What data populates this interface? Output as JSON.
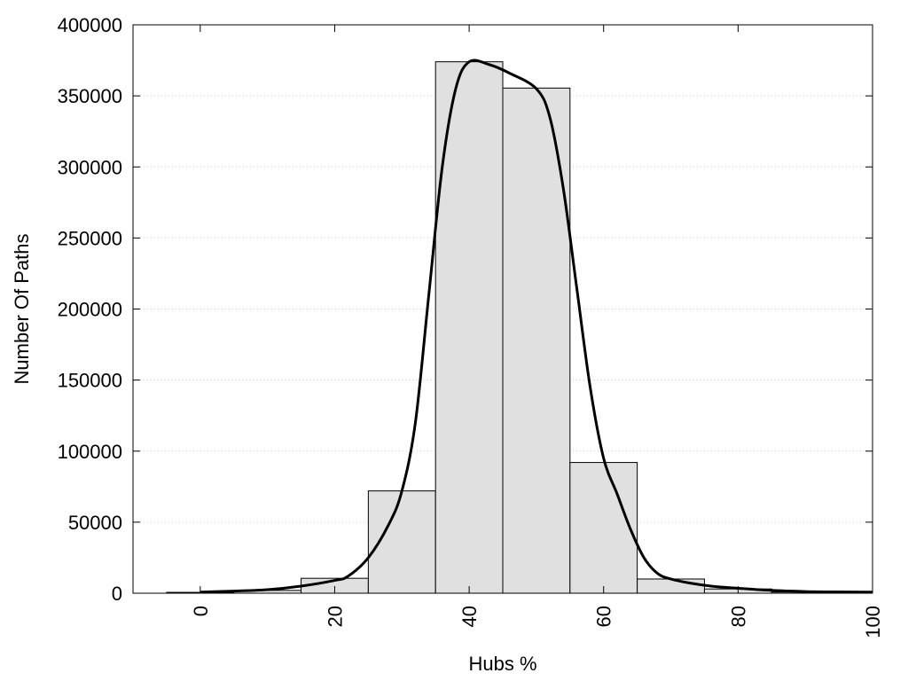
{
  "chart_data": {
    "type": "bar",
    "xlabel": "Hubs %",
    "ylabel": "Number Of Paths",
    "xlim": [
      -10,
      100
    ],
    "ylim": [
      0,
      400000
    ],
    "xticks": [
      0,
      20,
      40,
      60,
      80,
      100
    ],
    "yticks": [
      0,
      50000,
      100000,
      150000,
      200000,
      250000,
      300000,
      350000,
      400000
    ],
    "grid": "horizontal-dotted",
    "bar_width": 10,
    "bins": [
      {
        "x": 0,
        "value": 600
      },
      {
        "x": 10,
        "value": 2000
      },
      {
        "x": 20,
        "value": 10500
      },
      {
        "x": 30,
        "value": 72000
      },
      {
        "x": 40,
        "value": 374000
      },
      {
        "x": 50,
        "value": 355500
      },
      {
        "x": 60,
        "value": 92000
      },
      {
        "x": 70,
        "value": 10000
      },
      {
        "x": 80,
        "value": 3000
      },
      {
        "x": 90,
        "value": 800
      }
    ],
    "curve": [
      [
        0,
        800
      ],
      [
        5,
        1500
      ],
      [
        10,
        2500
      ],
      [
        15,
        5000
      ],
      [
        20,
        9000
      ],
      [
        22,
        12000
      ],
      [
        25,
        25000
      ],
      [
        28,
        48000
      ],
      [
        30,
        72000
      ],
      [
        32,
        120000
      ],
      [
        34,
        210000
      ],
      [
        36,
        300000
      ],
      [
        38,
        355000
      ],
      [
        40,
        374000
      ],
      [
        43,
        372000
      ],
      [
        46,
        366000
      ],
      [
        50,
        355000
      ],
      [
        52,
        335000
      ],
      [
        54,
        285000
      ],
      [
        56,
        215000
      ],
      [
        58,
        145000
      ],
      [
        60,
        95000
      ],
      [
        62,
        70000
      ],
      [
        64,
        45000
      ],
      [
        66,
        25000
      ],
      [
        68,
        14000
      ],
      [
        70,
        10000
      ],
      [
        73,
        7000
      ],
      [
        76,
        5000
      ],
      [
        80,
        3500
      ],
      [
        85,
        2000
      ],
      [
        90,
        1200
      ],
      [
        95,
        900
      ],
      [
        100,
        800
      ]
    ],
    "colors": {
      "bar_fill": "#e0e0e0",
      "bar_stroke": "#000000",
      "curve": "#000000",
      "grid": "#cccccc"
    }
  }
}
